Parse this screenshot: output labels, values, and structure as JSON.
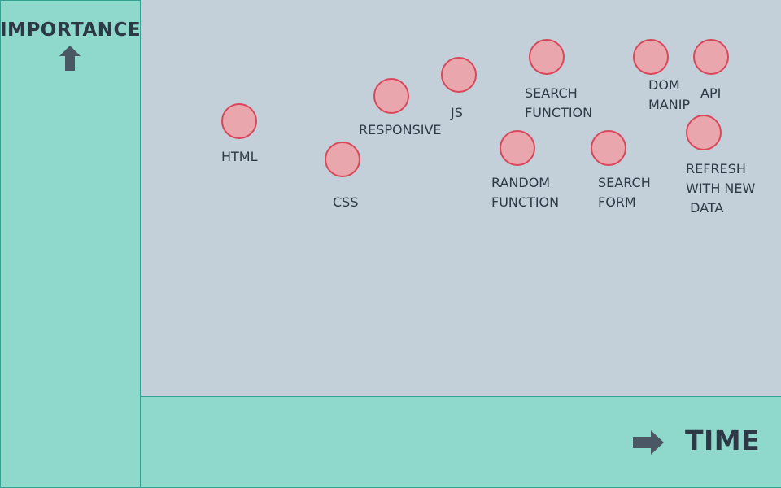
{
  "y_axis": {
    "title": "IMPORTANCE",
    "icon": "arrow-up-icon"
  },
  "x_axis": {
    "title": "TIME",
    "icon": "arrow-right-icon"
  },
  "colors": {
    "panel": "#8fd8cc",
    "plot_background": "#c3d0d9",
    "bubble_fill": "#eaa6ad",
    "bubble_stroke": "#d9475b",
    "text": "#2d3a45"
  },
  "items": [
    {
      "id": "html",
      "lines": [
        "HTML"
      ]
    },
    {
      "id": "css",
      "lines": [
        "CSS"
      ]
    },
    {
      "id": "responsive",
      "lines": [
        "RESPONSIVE"
      ]
    },
    {
      "id": "js",
      "lines": [
        "JS"
      ]
    },
    {
      "id": "search-function",
      "lines": [
        "SEARCH",
        "FUNCTION"
      ]
    },
    {
      "id": "random-function",
      "lines": [
        "RANDOM",
        "FUNCTION"
      ]
    },
    {
      "id": "dom-manip",
      "lines": [
        "DOM",
        "MANIP"
      ]
    },
    {
      "id": "search-form",
      "lines": [
        "SEARCH",
        "FORM"
      ]
    },
    {
      "id": "api",
      "lines": [
        "API"
      ]
    },
    {
      "id": "refresh",
      "lines": [
        "REFRESH",
        "WITH NEW",
        " DATA"
      ]
    }
  ]
}
